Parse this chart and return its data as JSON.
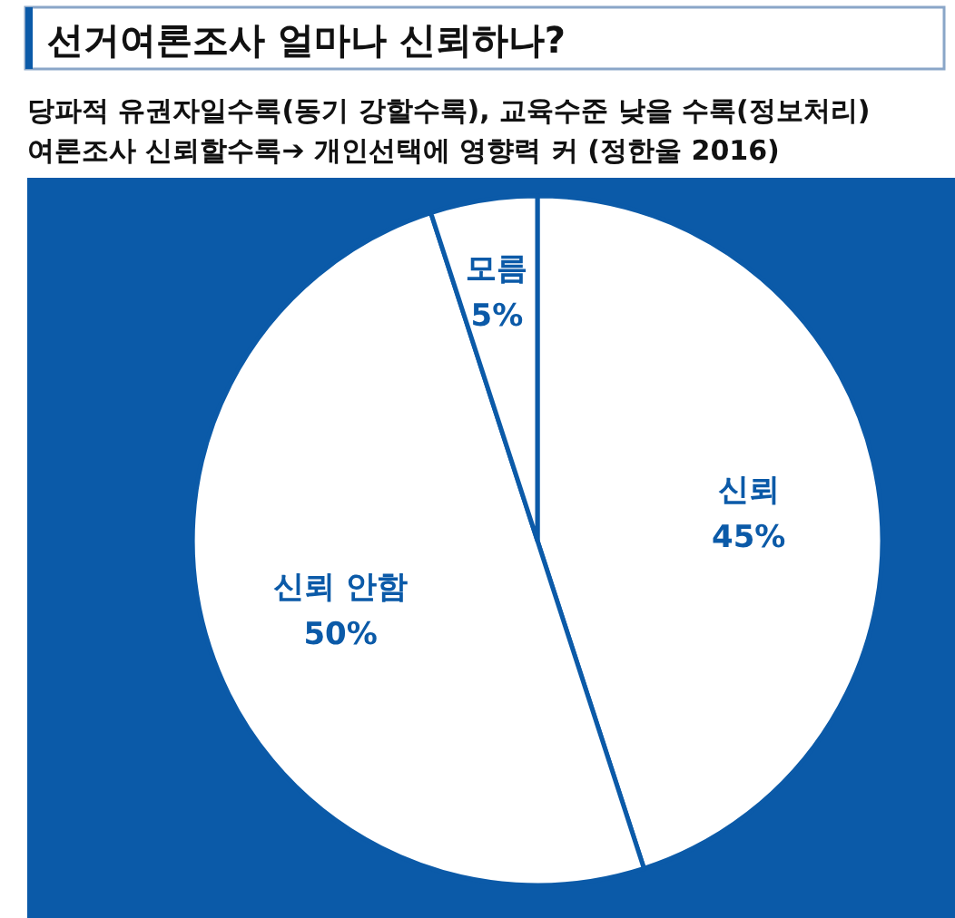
{
  "chart_data": {
    "type": "pie",
    "title": "선거여론조사 얼마나 신뢰하나?",
    "subtitle": "당파적 유권자일수록(동기 강할수록), 교육수준 낮을 수록(정보처리)\n여론조사 신뢰할수록➔ 개인선택에 영향력 커 (정한울 2016)",
    "categories": [
      "신뢰",
      "신뢰 안함",
      "모름"
    ],
    "values": [
      45,
      50,
      5
    ],
    "colors": [
      "#ffffff",
      "#ffffff",
      "#ffffff"
    ],
    "value_labels": [
      "45%",
      "50%",
      "5%"
    ]
  }
}
